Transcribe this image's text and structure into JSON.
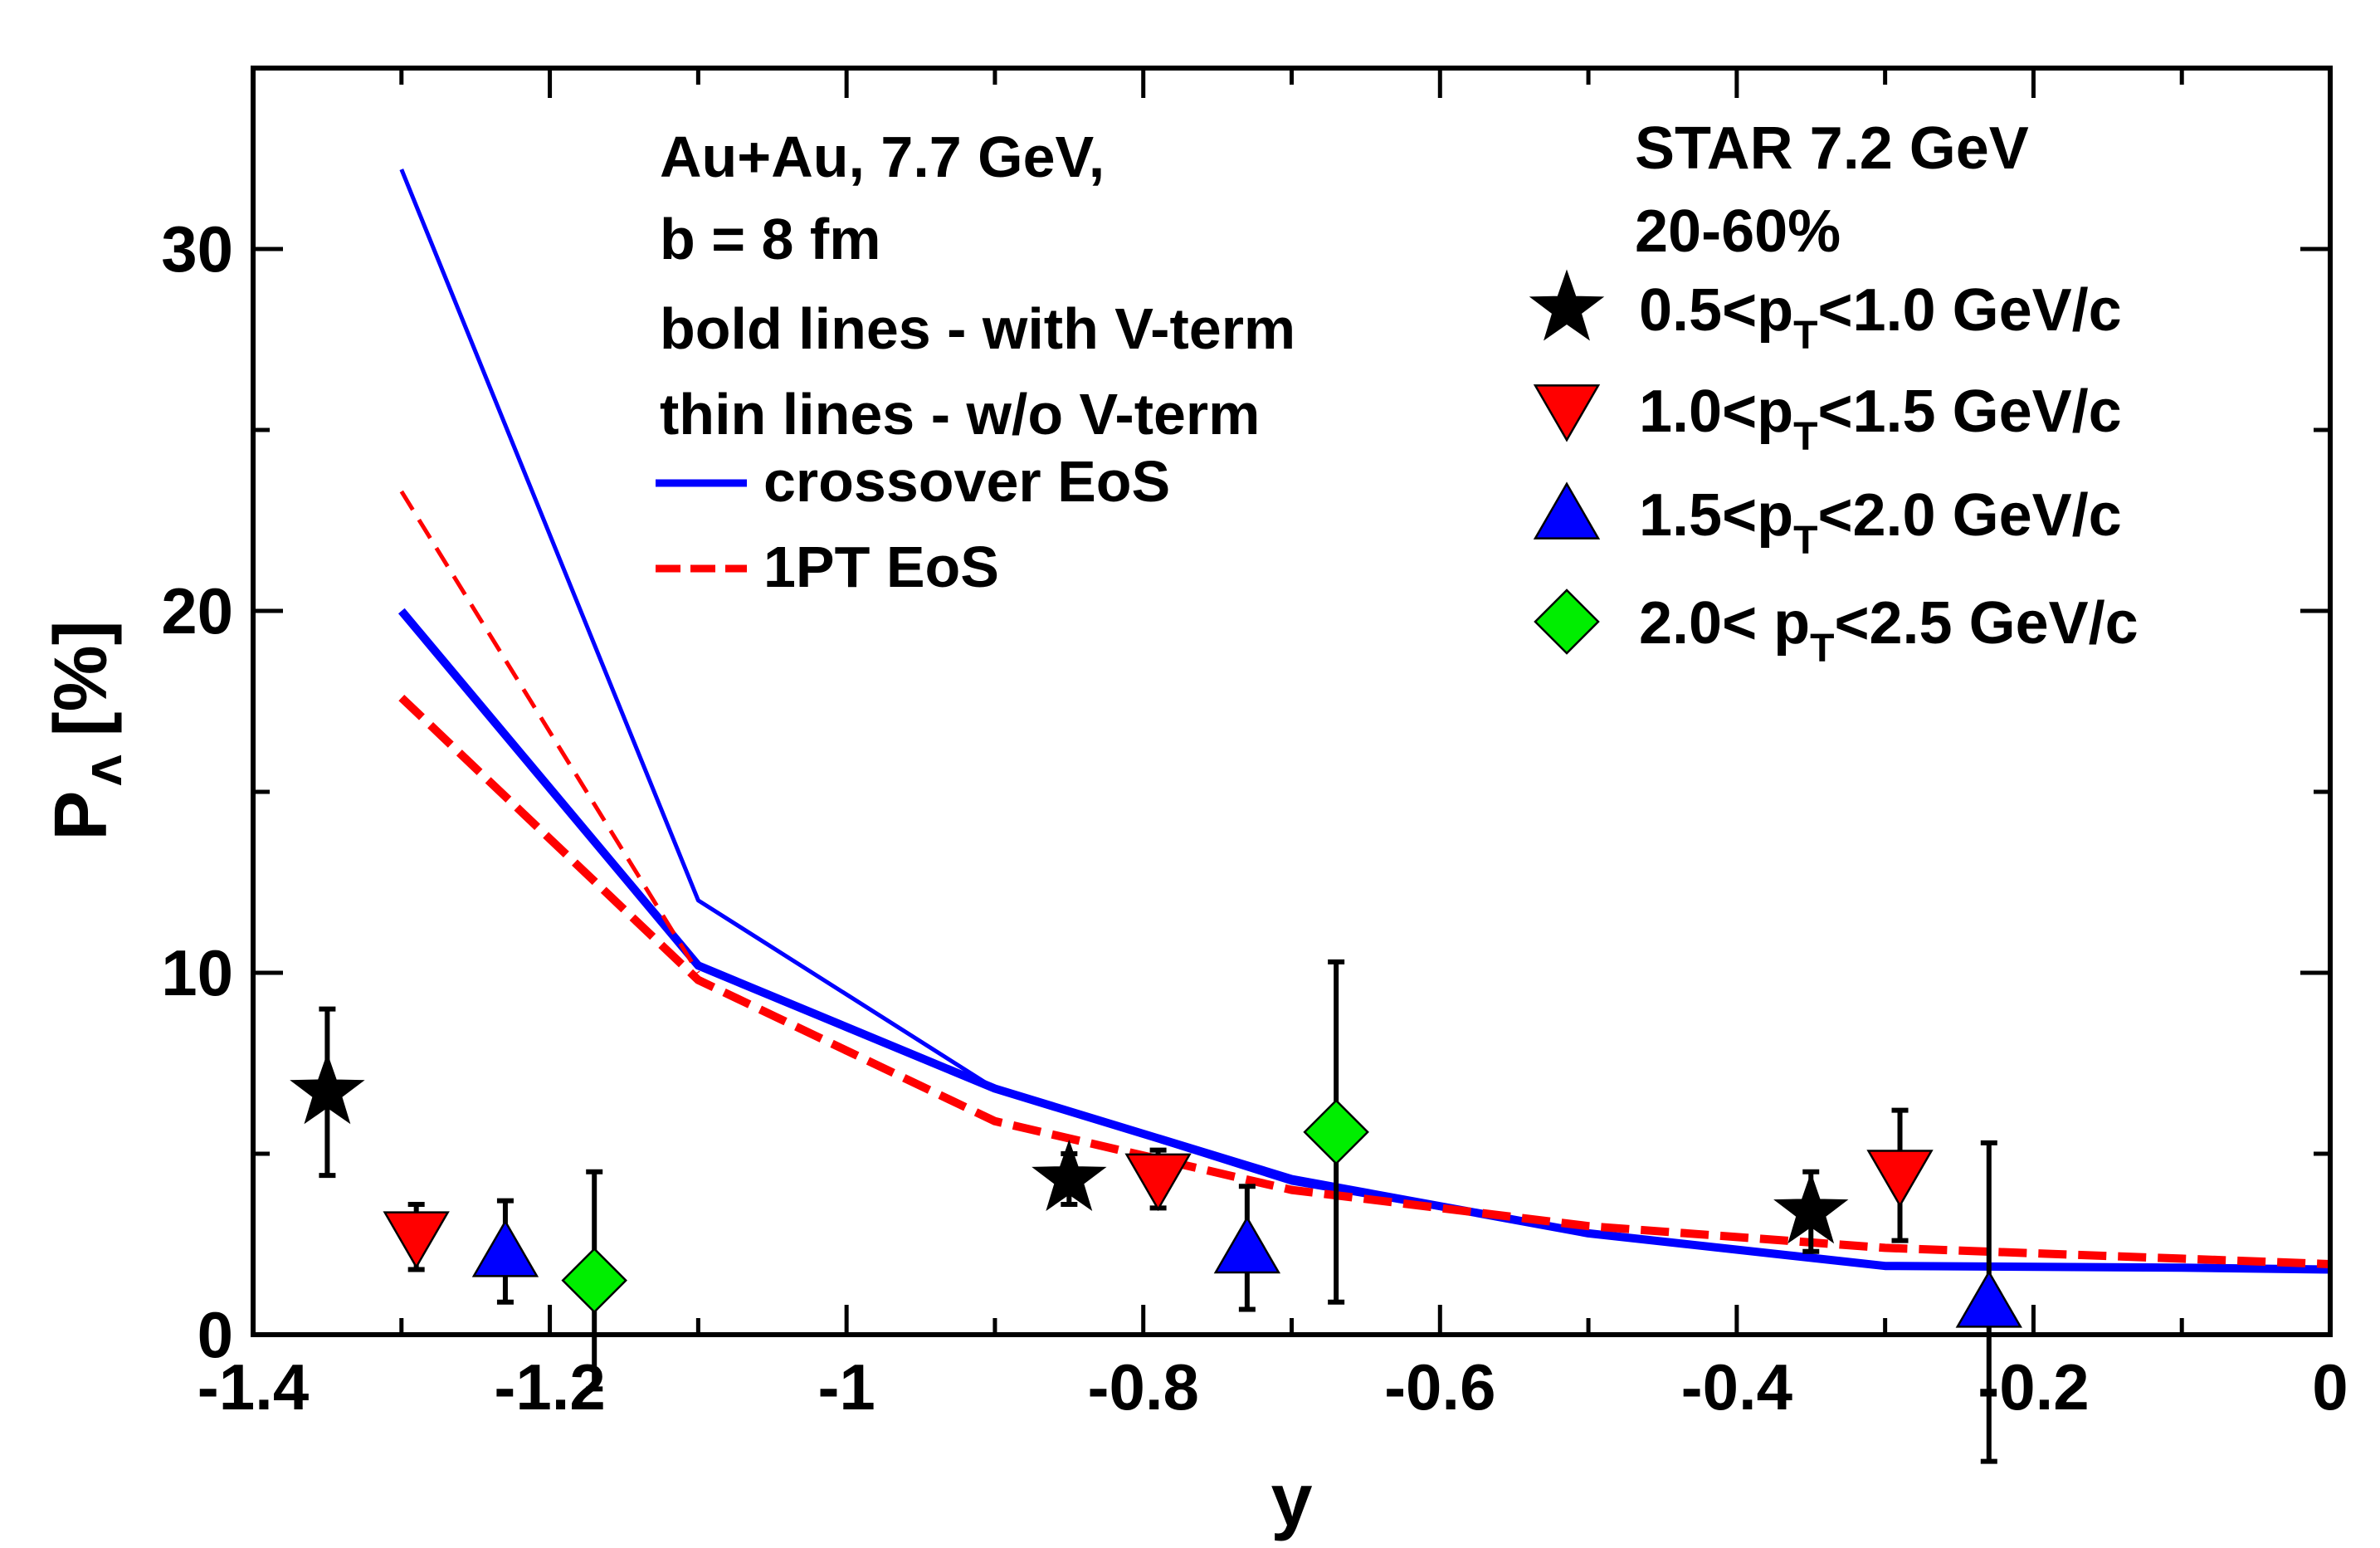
{
  "chart_data": {
    "type": "line",
    "xlabel": "y",
    "ylabel_main": "P",
    "ylabel_sub": "Λ",
    "ylabel_unit": "[%]",
    "xlim": [
      -1.4,
      0
    ],
    "ylim": [
      0,
      35
    ],
    "x_ticks": [
      -1.4,
      -1.2,
      -1.0,
      -0.8,
      -0.6,
      -0.4,
      -0.2,
      0
    ],
    "x_tick_labels": [
      "-1.4",
      "-1.2",
      "-1",
      "-0.8",
      "-0.6",
      "-0.4",
      "-0.2",
      "0"
    ],
    "y_ticks": [
      0,
      10,
      20,
      30
    ],
    "y_tick_labels": [
      "0",
      "10",
      "20",
      "30"
    ],
    "annotations": [
      "Au+Au, 7.7 GeV,",
      "b = 8 fm",
      "bold lines - with V-term",
      "thin  lines - w/o  V-term"
    ],
    "line_legend": [
      {
        "label": "crossover EoS",
        "color": "#0000ff",
        "style": "solid"
      },
      {
        "label": "1PT EoS",
        "color": "#ff0000",
        "style": "dashed"
      }
    ],
    "data_legend_title": [
      "STAR 7.2 GeV",
      "20-60%"
    ],
    "series": [
      {
        "name": "crossover EoS, with V-term",
        "color": "#0000ff",
        "style": "solid",
        "weight": "bold",
        "x": [
          -1.3,
          -1.1,
          -0.9,
          -0.7,
          -0.5,
          -0.3,
          -0.1,
          0.0
        ],
        "y": [
          20.0,
          10.2,
          6.8,
          4.3,
          2.8,
          1.9,
          1.85,
          1.8
        ]
      },
      {
        "name": "crossover EoS, w/o V-term",
        "color": "#0000ff",
        "style": "solid",
        "weight": "thin",
        "x": [
          -1.3,
          -1.1,
          -0.9,
          -0.7,
          -0.5,
          -0.3,
          -0.1,
          0.0
        ],
        "y": [
          32.2,
          12.0,
          6.8,
          4.2,
          2.8,
          1.9,
          1.85,
          1.8
        ]
      },
      {
        "name": "1PT EoS, with V-term",
        "color": "#ff0000",
        "style": "dashed",
        "weight": "bold",
        "x": [
          -1.3,
          -1.1,
          -0.9,
          -0.7,
          -0.5,
          -0.3,
          -0.1,
          0.0
        ],
        "y": [
          17.6,
          9.8,
          5.9,
          4.0,
          3.0,
          2.4,
          2.1,
          1.95
        ]
      },
      {
        "name": "1PT EoS, w/o V-term",
        "color": "#ff0000",
        "style": "dashed",
        "weight": "thin",
        "x": [
          -1.3,
          -1.1
        ],
        "y": [
          23.3,
          10.0
        ]
      }
    ],
    "points": [
      {
        "label": "0.5<pT<1.0 GeV/c",
        "label_pre": "0.5<p",
        "label_sub": "T",
        "label_post": "<1.0 GeV/c",
        "marker": "star",
        "color": "#000000",
        "data": [
          {
            "x": -1.35,
            "y": 6.7,
            "err": 2.3
          },
          {
            "x": -0.85,
            "y": 4.3,
            "err": 0.7
          },
          {
            "x": -0.35,
            "y": 3.4,
            "err": 1.1
          }
        ]
      },
      {
        "label": "1.0<pT<1.5 GeV/c",
        "label_pre": "1.0<p",
        "label_sub": "T",
        "label_post": "<1.5 GeV/c",
        "marker": "triangle-down",
        "color": "#ff0000",
        "data": [
          {
            "x": -1.29,
            "y": 2.7,
            "err": 0.9
          },
          {
            "x": -0.79,
            "y": 4.3,
            "err": 0.8
          },
          {
            "x": -0.29,
            "y": 4.4,
            "err": 1.8
          }
        ]
      },
      {
        "label": "1.5<pT<2.0 GeV/c",
        "label_pre": "1.5<p",
        "label_sub": "T",
        "label_post": "<2.0 GeV/c",
        "marker": "triangle-up",
        "color": "#0000ff",
        "data": [
          {
            "x": -1.23,
            "y": 2.3,
            "err": 1.4
          },
          {
            "x": -0.73,
            "y": 2.4,
            "err": 1.7
          },
          {
            "x": -0.23,
            "y": 0.9,
            "err": 4.4
          }
        ]
      },
      {
        "label": "2.0< pT<2.5 GeV/c",
        "label_pre": "2.0< p",
        "label_sub": "T",
        "label_post": "<2.5 GeV/c",
        "marker": "diamond",
        "color": "#00ee00",
        "data": [
          {
            "x": -1.17,
            "y": 1.5,
            "err": 3.0
          },
          {
            "x": -0.67,
            "y": 5.6,
            "err": 4.7
          }
        ]
      }
    ]
  }
}
